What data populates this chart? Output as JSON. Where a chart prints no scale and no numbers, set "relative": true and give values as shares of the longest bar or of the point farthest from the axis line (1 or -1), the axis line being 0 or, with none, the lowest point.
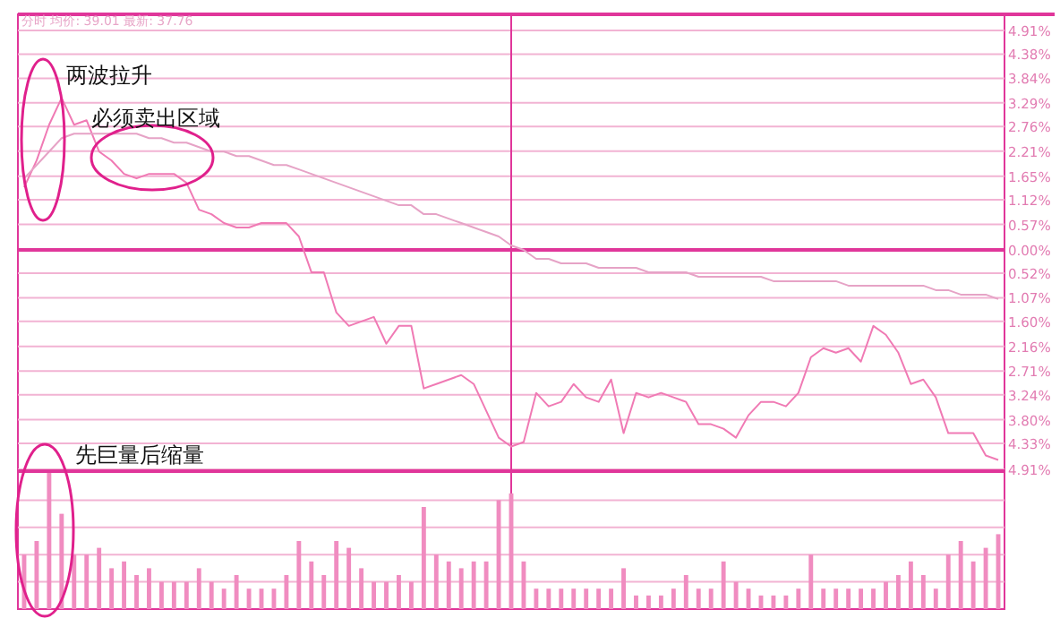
{
  "chart_data": [
    {
      "type": "line",
      "subtitle": "分时 均价: 39.01 最新: 37.76",
      "categories": [
        null,
        null,
        null,
        null,
        null,
        null,
        null,
        null,
        null,
        null,
        null,
        null,
        null,
        null,
        null,
        null,
        null,
        null,
        null,
        null,
        null,
        null,
        null,
        null,
        null,
        null,
        null,
        null,
        null,
        null,
        null,
        null,
        null,
        null,
        null,
        null,
        null,
        null,
        null,
        null,
        null,
        null,
        null,
        null,
        null,
        null,
        null,
        null,
        null,
        null,
        null,
        null,
        null,
        null,
        null,
        null,
        null,
        null,
        null,
        null,
        null,
        null,
        null,
        null,
        null,
        null,
        null,
        null,
        null,
        null,
        null,
        null,
        null,
        null,
        null,
        null,
        null,
        null,
        null
      ],
      "series": [
        {
          "color": "#f07ab4",
          "values": [
            1.4,
            2.0,
            2.8,
            3.4,
            2.8,
            2.9,
            2.2,
            2.0,
            1.7,
            1.6,
            1.7,
            1.7,
            1.7,
            1.5,
            0.9,
            0.8,
            0.6,
            0.5,
            0.5,
            0.6,
            0.6,
            0.6,
            0.3,
            -0.5,
            -0.5,
            -1.4,
            -1.7,
            -1.6,
            -1.5,
            -2.1,
            -1.7,
            -1.7,
            -3.1,
            -3.0,
            -2.9,
            -2.8,
            -3.0,
            -3.6,
            -4.2,
            -4.4,
            -4.3,
            -3.2,
            -3.5,
            -3.4,
            -3.0,
            -3.3,
            -3.4,
            -2.9,
            -4.1,
            -3.2,
            -3.3,
            -3.2,
            -3.3,
            -3.4,
            -3.9,
            -3.9,
            -4.0,
            -4.2,
            -3.7,
            -3.4,
            -3.4,
            -3.5,
            -3.2,
            -2.4,
            -2.2,
            -2.3,
            -2.2,
            -2.5,
            -1.7,
            -1.9,
            -2.3,
            -3.0,
            -2.9,
            -3.3,
            -4.1,
            -4.1,
            -4.1,
            -4.6,
            -4.7
          ]
        },
        {
          "color": "#e6a3c6",
          "values": [
            1.6,
            1.9,
            2.2,
            2.5,
            2.6,
            2.6,
            2.6,
            2.6,
            2.6,
            2.6,
            2.5,
            2.5,
            2.4,
            2.4,
            2.3,
            2.2,
            2.2,
            2.1,
            2.1,
            2.0,
            1.9,
            1.9,
            1.8,
            1.7,
            1.6,
            1.5,
            1.4,
            1.3,
            1.2,
            1.1,
            1.0,
            1.0,
            0.8,
            0.8,
            0.7,
            0.6,
            0.5,
            0.4,
            0.3,
            0.1,
            0.0,
            -0.2,
            -0.2,
            -0.3,
            -0.3,
            -0.3,
            -0.4,
            -0.4,
            -0.4,
            -0.4,
            -0.5,
            -0.5,
            -0.5,
            -0.5,
            -0.6,
            -0.6,
            -0.6,
            -0.6,
            -0.6,
            -0.6,
            -0.7,
            -0.7,
            -0.7,
            -0.7,
            -0.7,
            -0.7,
            -0.8,
            -0.8,
            -0.8,
            -0.8,
            -0.8,
            -0.8,
            -0.8,
            -0.9,
            -0.9,
            -1.0,
            -1.0,
            -1.0,
            -1.1
          ]
        }
      ],
      "ylim": [
        -4.91,
        4.91
      ],
      "yticks": [
        {
          "value": 4.91,
          "label": "4.91%"
        },
        {
          "value": 4.38,
          "label": "4.38%"
        },
        {
          "value": 3.84,
          "label": "3.84%"
        },
        {
          "value": 3.29,
          "label": "3.29%"
        },
        {
          "value": 2.76,
          "label": "2.76%"
        },
        {
          "value": 2.21,
          "label": "2.21%"
        },
        {
          "value": 1.65,
          "label": "1.65%"
        },
        {
          "value": 1.12,
          "label": "1.12%"
        },
        {
          "value": 0.57,
          "label": "0.57%"
        },
        {
          "value": 0,
          "label": "0.00%"
        },
        {
          "value": -0.52,
          "label": "0.52%"
        },
        {
          "value": -1.07,
          "label": "1.07%"
        },
        {
          "value": -1.6,
          "label": "1.60%"
        },
        {
          "value": -2.16,
          "label": "2.16%"
        },
        {
          "value": -2.71,
          "label": "2.71%"
        },
        {
          "value": -3.24,
          "label": "3.24%"
        },
        {
          "value": -3.8,
          "label": "3.80%"
        },
        {
          "value": -4.33,
          "label": "4.33%"
        },
        {
          "value": -4.91,
          "label": "4.91%"
        }
      ],
      "grid": true,
      "ref_lines": [
        {
          "axis": "y",
          "value": 0,
          "color": "#e0369a"
        }
      ],
      "annotations": [
        "两波拉升",
        "必须卖出区域"
      ]
    },
    {
      "type": "bar",
      "relative": true,
      "color": "#f08cc0",
      "ref_lines": [
        {
          "axis": "y",
          "value": 0.2,
          "color": "#f2b3d3"
        },
        {
          "axis": "y",
          "value": 0.4,
          "color": "#f2b3d3"
        },
        {
          "axis": "y",
          "value": 0.6,
          "color": "#f2b3d3"
        },
        {
          "axis": "y",
          "value": 0.8,
          "color": "#f2b3d3"
        }
      ],
      "categories": [
        null,
        null,
        null,
        null,
        null,
        null,
        null,
        null,
        null,
        null,
        null,
        null,
        null,
        null,
        null,
        null,
        null,
        null,
        null,
        null,
        null,
        null,
        null,
        null,
        null,
        null,
        null,
        null,
        null,
        null,
        null,
        null,
        null,
        null,
        null,
        null,
        null,
        null,
        null,
        null,
        null,
        null,
        null,
        null,
        null,
        null,
        null,
        null,
        null,
        null,
        null,
        null,
        null,
        null,
        null,
        null,
        null,
        null,
        null,
        null,
        null,
        null,
        null,
        null,
        null,
        null,
        null,
        null,
        null,
        null,
        null,
        null,
        null,
        null,
        null,
        null,
        null,
        null,
        null
      ],
      "values": [
        0.4,
        0.5,
        1.0,
        0.7,
        0.4,
        0.4,
        0.45,
        0.3,
        0.35,
        0.25,
        0.3,
        0.2,
        0.2,
        0.2,
        0.3,
        0.2,
        0.15,
        0.25,
        0.15,
        0.15,
        0.15,
        0.25,
        0.5,
        0.35,
        0.25,
        0.5,
        0.45,
        0.3,
        0.2,
        0.2,
        0.25,
        0.2,
        0.75,
        0.4,
        0.35,
        0.3,
        0.35,
        0.35,
        0.8,
        0.85,
        0.35,
        0.15,
        0.15,
        0.15,
        0.15,
        0.15,
        0.15,
        0.15,
        0.3,
        0.1,
        0.1,
        0.1,
        0.15,
        0.25,
        0.15,
        0.15,
        0.35,
        0.2,
        0.15,
        0.1,
        0.1,
        0.1,
        0.15,
        0.4,
        0.15,
        0.15,
        0.15,
        0.15,
        0.15,
        0.2,
        0.25,
        0.35,
        0.25,
        0.15,
        0.4,
        0.5,
        0.35,
        0.45,
        0.55
      ],
      "annotations": [
        "先巨量后缩量"
      ]
    }
  ]
}
